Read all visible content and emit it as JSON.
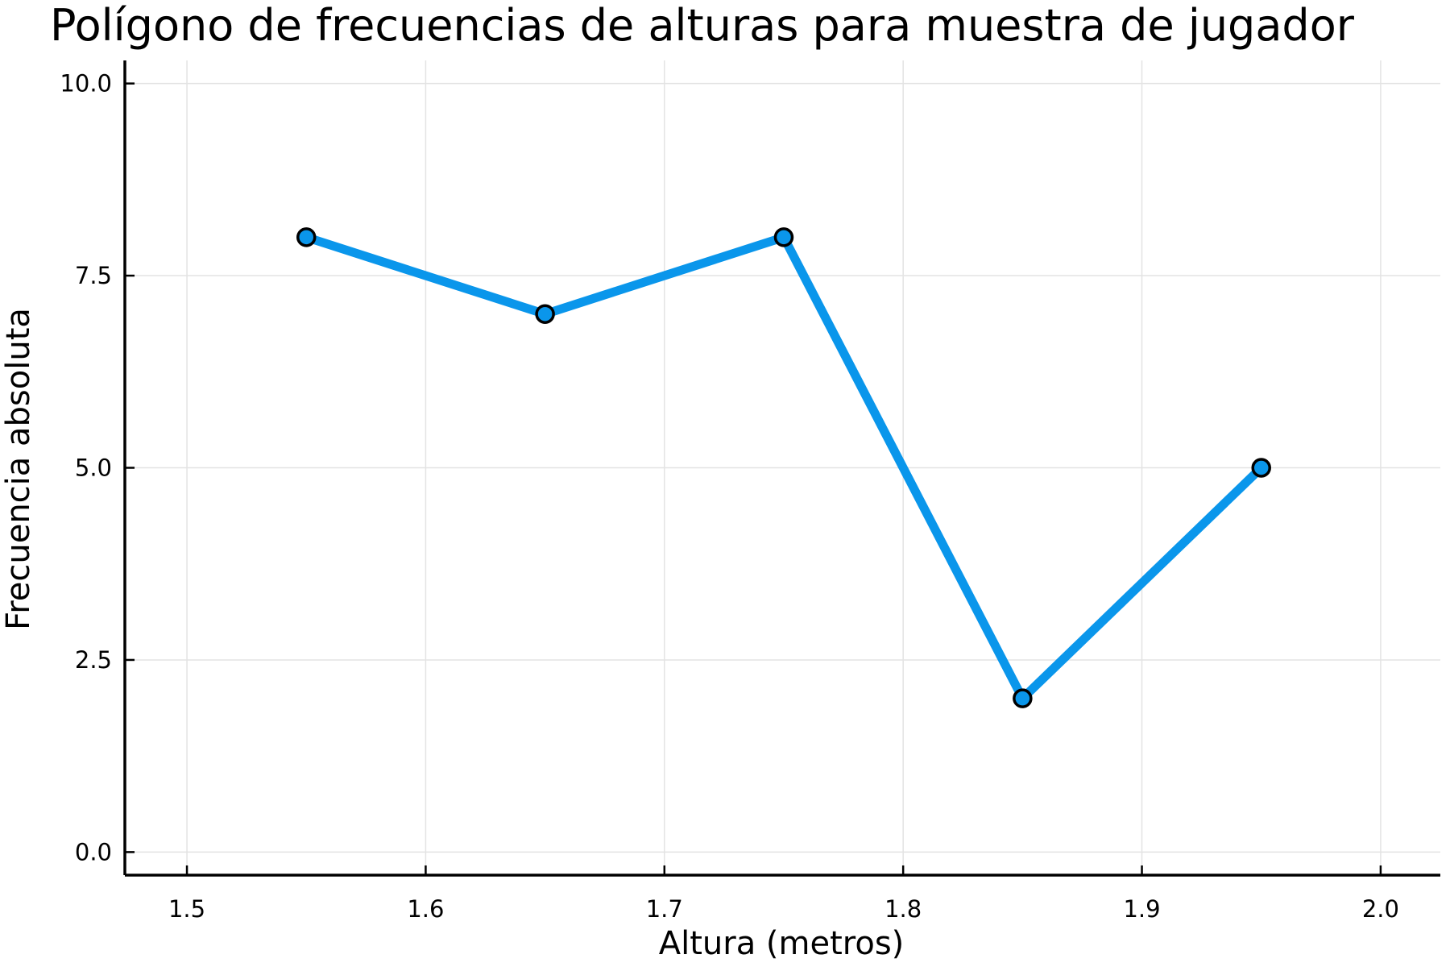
{
  "chart_data": {
    "type": "line",
    "title": "Polígono de frecuencias de alturas para muestra de jugador",
    "xlabel": "Altura (metros)",
    "ylabel": "Frecuencia absoluta",
    "x": [
      1.55,
      1.65,
      1.75,
      1.85,
      1.95
    ],
    "series": [
      {
        "values": [
          8,
          7,
          8,
          2,
          5
        ]
      }
    ],
    "xlim": [
      1.474,
      2.025
    ],
    "ylim": [
      -0.3,
      10.3
    ],
    "xticks": [
      1.5,
      1.6,
      1.7,
      1.8,
      1.9,
      2.0
    ],
    "xtick_labels": [
      "1.5",
      "1.6",
      "1.7",
      "1.8",
      "1.9",
      "2.0"
    ],
    "yticks": [
      0,
      2.5,
      5,
      7.5,
      10
    ],
    "ytick_labels": [
      "0.0",
      "2.5",
      "5.0",
      "7.5",
      "10.0"
    ],
    "grid": true,
    "legend": "none",
    "line_color": "#0a96eb",
    "marker_color": "#0a96eb",
    "marker_edge_color": "#000000"
  }
}
